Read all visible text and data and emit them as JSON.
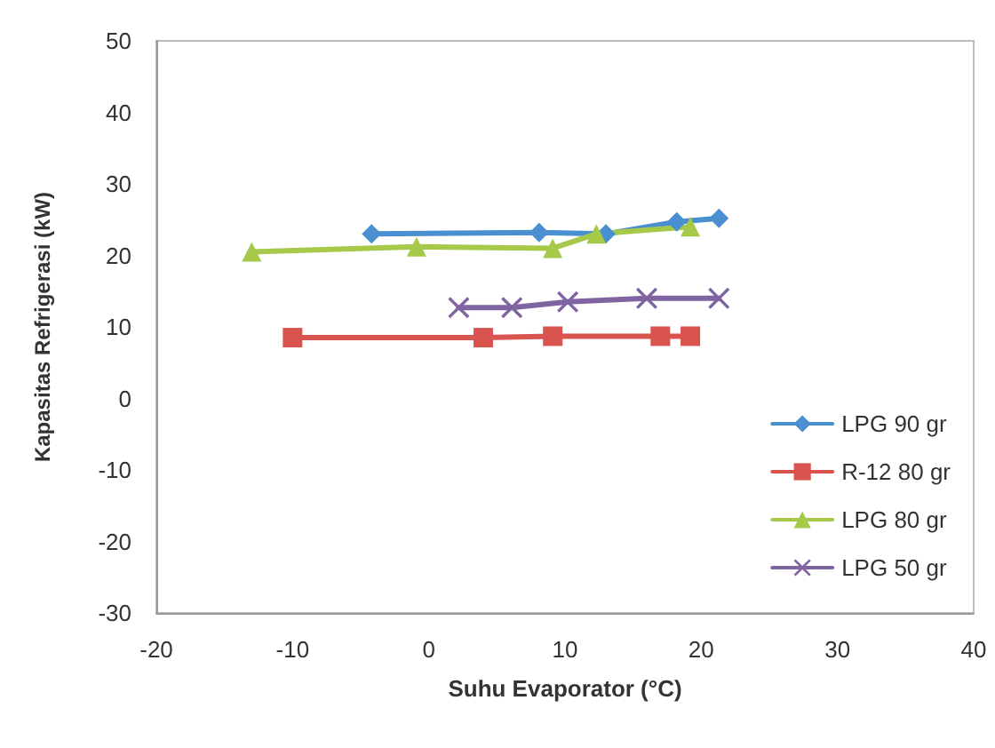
{
  "chart_data": {
    "type": "line",
    "xlabel": "Suhu Evaporator (°C)",
    "ylabel": "Kapasitas Refrigerasi (kW)",
    "xlim": [
      -20,
      40
    ],
    "xticks": [
      -20,
      -10,
      0,
      10,
      20,
      30,
      40
    ],
    "ylim": [
      -30,
      50
    ],
    "yticks": [
      -30,
      -20,
      -10,
      0,
      10,
      20,
      30,
      40,
      50
    ],
    "grid": false,
    "legend": "bottom right",
    "line_style": "solid",
    "series": [
      {
        "name": "LPG 90 gr",
        "color": "#4a8fd0",
        "marker": "diamond",
        "x": [
          -4.2,
          8.1,
          13,
          18.2,
          21.3
        ],
        "values": [
          23,
          23.2,
          23,
          24.7,
          25.2
        ]
      },
      {
        "name": "R-12 80 gr",
        "color": "#d9534f",
        "marker": "square",
        "x": [
          -10,
          4,
          9.1,
          17,
          19.2
        ],
        "values": [
          8.5,
          8.5,
          8.7,
          8.7,
          8.7
        ]
      },
      {
        "name": "LPG 80 gr",
        "color": "#a6c94a",
        "marker": "triangle",
        "x": [
          -13,
          -0.9,
          9.1,
          12.3,
          19.2
        ],
        "values": [
          20.5,
          21.2,
          21,
          23,
          24
        ]
      },
      {
        "name": "LPG 50 gr",
        "color": "#8064a2",
        "marker": "cross",
        "x": [
          2.2,
          6.1,
          10.2,
          16,
          21.3
        ],
        "values": [
          12.7,
          12.7,
          13.5,
          14,
          14
        ]
      }
    ]
  }
}
